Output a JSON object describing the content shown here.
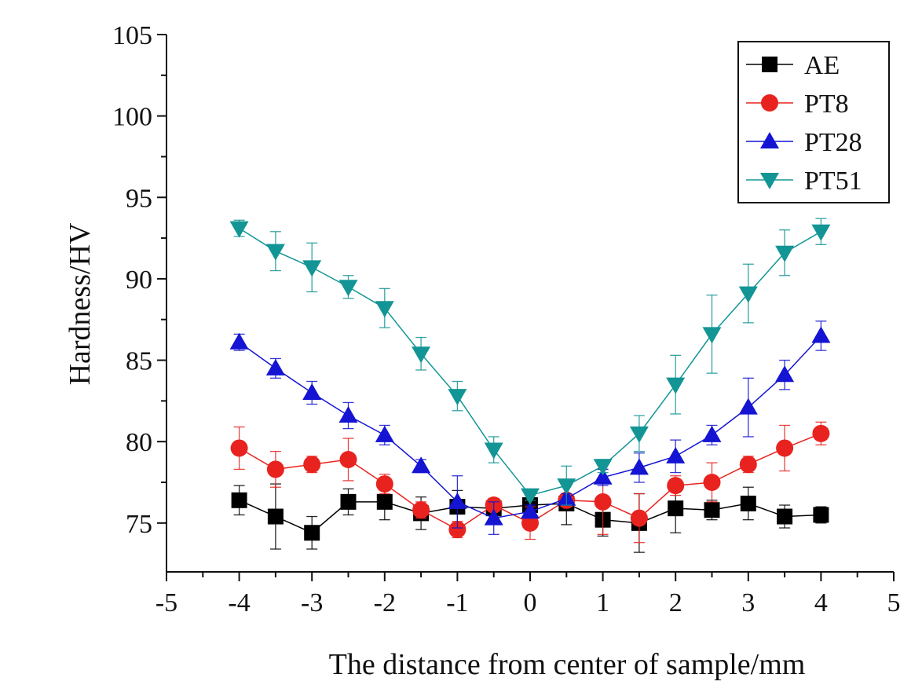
{
  "chart_data": {
    "type": "line",
    "title": "",
    "xlabel": "The distance from center of sample/mm",
    "ylabel": "Hardness/HV",
    "xlim": [
      -5,
      5
    ],
    "ylim": [
      72,
      105
    ],
    "x_ticks": [
      -5,
      -4,
      -3,
      -2,
      -1,
      0,
      1,
      2,
      3,
      4,
      5
    ],
    "y_ticks": [
      75,
      80,
      85,
      90,
      95,
      100,
      105
    ],
    "legend_position": "top-right",
    "x": [
      -4,
      -3.5,
      -3,
      -2.5,
      -2,
      -1.5,
      -1,
      -0.5,
      0,
      0.5,
      1,
      1.5,
      2,
      2.5,
      3,
      3.5,
      4
    ],
    "series": [
      {
        "name": "AE",
        "color": "#000000",
        "marker": "square",
        "values": [
          76.4,
          75.4,
          74.4,
          76.3,
          76.3,
          75.6,
          76.0,
          75.9,
          76.1,
          76.2,
          75.2,
          75.0,
          75.9,
          75.8,
          76.2,
          75.4,
          75.5
        ],
        "errors": [
          0.9,
          2.0,
          1.0,
          0.8,
          1.1,
          1.0,
          1.0,
          0.6,
          0.6,
          1.3,
          1.0,
          1.8,
          1.5,
          0.6,
          1.0,
          0.7,
          0.5
        ]
      },
      {
        "name": "PT8",
        "color": "#e8231f",
        "marker": "circle",
        "values": [
          79.6,
          78.3,
          78.6,
          78.9,
          77.4,
          75.8,
          74.6,
          76.1,
          75.0,
          76.4,
          76.3,
          75.3,
          77.3,
          77.5,
          78.6,
          79.6,
          80.5
        ],
        "errors": [
          1.3,
          1.1,
          0.5,
          1.3,
          0.6,
          0.5,
          0.5,
          0.4,
          1.0,
          0.3,
          2.0,
          1.5,
          0.6,
          1.2,
          0.5,
          1.4,
          0.7
        ]
      },
      {
        "name": "PT28",
        "color": "#1414d2",
        "marker": "triangle-up",
        "values": [
          86.1,
          84.5,
          83.0,
          81.6,
          80.4,
          78.5,
          76.3,
          75.3,
          75.7,
          76.5,
          77.8,
          78.4,
          79.1,
          80.4,
          82.1,
          84.1,
          86.5
        ],
        "errors": [
          0.5,
          0.6,
          0.7,
          0.8,
          0.6,
          0.4,
          1.6,
          1.0,
          0.4,
          0.3,
          0.5,
          0.9,
          1.0,
          0.6,
          1.8,
          0.9,
          0.9
        ]
      },
      {
        "name": "PT51",
        "color": "#139595",
        "marker": "triangle-down",
        "values": [
          93.1,
          91.7,
          90.7,
          89.5,
          88.2,
          85.4,
          82.8,
          79.5,
          76.7,
          77.3,
          78.5,
          80.5,
          83.5,
          86.6,
          89.1,
          91.6,
          92.9
        ],
        "errors": [
          0.5,
          1.2,
          1.5,
          0.7,
          1.2,
          1.0,
          0.9,
          0.8,
          0.3,
          1.2,
          0.4,
          1.1,
          1.8,
          2.4,
          1.8,
          1.4,
          0.8
        ]
      }
    ]
  }
}
